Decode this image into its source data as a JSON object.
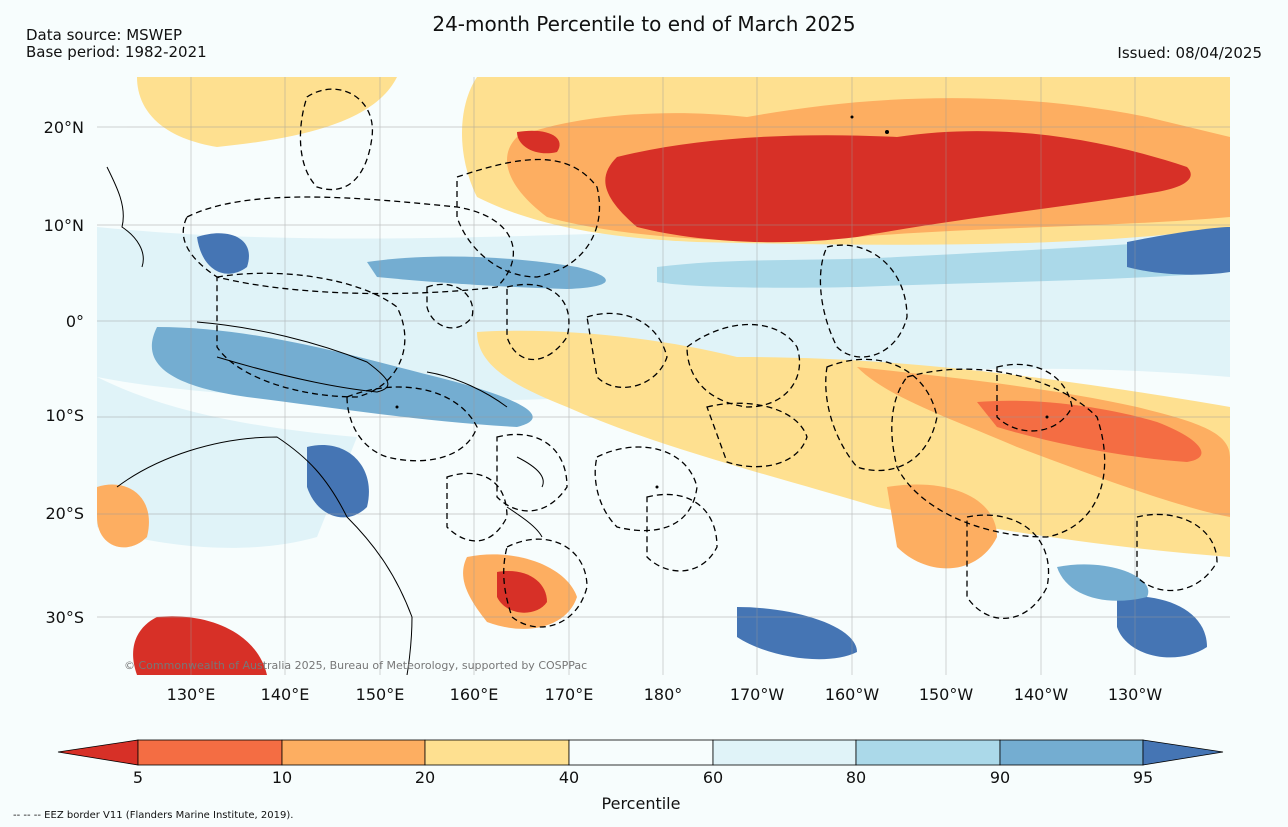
{
  "title": "24-month Percentile to end of March 2025",
  "data_source": "Data source: MSWEP",
  "base_period": "Base period: 1982-2021",
  "issued": "Issued: 08/04/2025",
  "lat_labels": [
    "20°N",
    "10°N",
    "0°",
    "10°S",
    "20°S",
    "30°S"
  ],
  "lon_labels": [
    "130°E",
    "140°E",
    "150°E",
    "160°E",
    "170°E",
    "180°",
    "170°W",
    "160°W",
    "150°W",
    "140°W",
    "130°W"
  ],
  "copyright": "© Commonwealth of Australia 2025, Bureau of Meteorology, supported by COSPPac",
  "colorbar": {
    "title": "Percentile",
    "ticks": [
      "5",
      "10",
      "20",
      "40",
      "60",
      "80",
      "90",
      "95"
    ],
    "colors": [
      "#d73027",
      "#f46d43",
      "#fdae61",
      "#fee090",
      "#f7fdfd",
      "#e0f3f8",
      "#abd9e9",
      "#74add1",
      "#4575b4"
    ]
  },
  "footnote": "-- -- -- EEZ border V11 (Flanders Marine Institute, 2019)."
}
